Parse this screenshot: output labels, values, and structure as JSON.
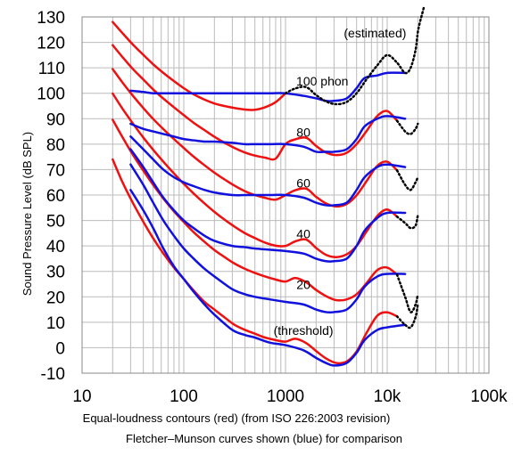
{
  "chart_data": {
    "type": "line",
    "ylabel": "Sound Pressure Level (dB SPL)",
    "caption_lines": [
      "Equal-loudness contours (red) (from ISO 226:2003 revision)",
      "Fletcher–Munson curves shown (blue) for comparison"
    ],
    "x_scale": "log",
    "xlim": [
      10,
      100000
    ],
    "ylim": [
      -10,
      130
    ],
    "x_ticks": [
      {
        "value": 10,
        "label": "10"
      },
      {
        "value": 100,
        "label": "100"
      },
      {
        "value": 1000,
        "label": "1000"
      },
      {
        "value": 10000,
        "label": "10k"
      },
      {
        "value": 100000,
        "label": "100k"
      }
    ],
    "y_ticks": [
      {
        "value": 130,
        "label": "130"
      },
      {
        "value": 120,
        "label": "120"
      },
      {
        "value": 110,
        "label": "110"
      },
      {
        "value": 100,
        "label": "100"
      },
      {
        "value": 90,
        "label": "90"
      },
      {
        "value": 80,
        "label": "80"
      },
      {
        "value": 70,
        "label": "70"
      },
      {
        "value": 60,
        "label": "60"
      },
      {
        "value": 50,
        "label": "50"
      },
      {
        "value": 40,
        "label": "40"
      },
      {
        "value": 30,
        "label": "30"
      },
      {
        "value": 20,
        "label": "20"
      },
      {
        "value": 10,
        "label": "10"
      },
      {
        "value": 0,
        "label": "0"
      },
      {
        "value": -10,
        "label": "-10"
      }
    ],
    "grid": true,
    "colors": {
      "iso": "#ee1111",
      "fletcher": "#1111dd",
      "estimated": "#000000",
      "grid": "#bbbbbb"
    },
    "annotations": [
      {
        "text": "(estimated)",
        "x": 7600,
        "y": 122
      },
      {
        "text": "100 phon",
        "x": 2300,
        "y": 103
      },
      {
        "text": "80",
        "x": 1500,
        "y": 83
      },
      {
        "text": "60",
        "x": 1500,
        "y": 63
      },
      {
        "text": "40",
        "x": 1500,
        "y": 43
      },
      {
        "text": "20",
        "x": 1500,
        "y": 23
      },
      {
        "text": "(threshold)",
        "x": 1500,
        "y": 5
      }
    ],
    "series": [
      {
        "kind": "iso",
        "x": [
          20,
          25,
          31.5,
          40,
          50,
          63,
          80,
          100,
          125,
          160,
          200,
          250,
          315,
          400,
          500,
          630,
          800,
          1000,
          1250,
          1600,
          2000,
          2500,
          3150,
          4000,
          5000,
          6300,
          8000,
          10000,
          12500
        ],
        "values": [
          74,
          65,
          57,
          49.5,
          43,
          37,
          31.5,
          27,
          22.5,
          18,
          15,
          12,
          9,
          7,
          5.5,
          4,
          3,
          2.4,
          3.5,
          1.8,
          -1.3,
          -4.2,
          -6,
          -5.4,
          -1.5,
          6,
          12.6,
          13.9,
          12.3
        ]
      },
      {
        "kind": "iso",
        "x": [
          20,
          25,
          31.5,
          40,
          50,
          63,
          80,
          100,
          125,
          160,
          200,
          250,
          315,
          400,
          500,
          630,
          800,
          1000,
          1250,
          1600,
          2000,
          2500,
          3150,
          4000,
          5000,
          6300,
          8000,
          10000,
          12500
        ],
        "values": [
          89.6,
          82.7,
          75.9,
          69.6,
          64,
          58.6,
          53.6,
          49.4,
          45.4,
          41.6,
          38.4,
          35.7,
          33.1,
          31,
          29.4,
          28,
          26.8,
          26,
          27.4,
          25.7,
          22.7,
          20.3,
          18.7,
          19,
          21,
          25.5,
          30.5,
          31.5,
          28.7
        ]
      },
      {
        "kind": "iso",
        "x": [
          20,
          25,
          31.5,
          40,
          50,
          63,
          80,
          100,
          125,
          160,
          200,
          250,
          315,
          400,
          500,
          630,
          800,
          1000,
          1250,
          1600,
          2000,
          2500,
          3150,
          4000,
          5000,
          6300,
          8000,
          10000,
          12500
        ],
        "values": [
          99.9,
          93.9,
          88.2,
          82.6,
          77.8,
          73.1,
          68.5,
          64.4,
          60.6,
          56.7,
          53.4,
          50.4,
          47.6,
          45,
          43.1,
          41.3,
          40.1,
          40,
          41.8,
          42.5,
          39.2,
          36.5,
          35.6,
          36.7,
          40,
          45.8,
          51.8,
          54.3,
          51.5
        ]
      },
      {
        "kind": "iso",
        "x": [
          20,
          25,
          31.5,
          40,
          50,
          63,
          80,
          100,
          125,
          160,
          200,
          250,
          315,
          400,
          500,
          630,
          800,
          1000,
          1250,
          1600,
          2000,
          2500,
          3150,
          4000,
          5000,
          6300,
          8000,
          10000,
          12500
        ],
        "values": [
          109.5,
          104.2,
          99.1,
          94.2,
          89.9,
          85.9,
          82,
          78.5,
          75.1,
          71.7,
          68.8,
          66.2,
          63.7,
          61.5,
          60,
          58.9,
          58.2,
          60,
          61.9,
          62.5,
          59.3,
          56.7,
          55.5,
          56.5,
          59.9,
          65.6,
          71.5,
          73.1,
          69.7
        ]
      },
      {
        "kind": "iso",
        "x": [
          20,
          25,
          31.5,
          40,
          50,
          63,
          80,
          100,
          125,
          160,
          200,
          250,
          315,
          400,
          500,
          630,
          800,
          1000,
          1250,
          1600,
          2000,
          2500,
          3150,
          4000,
          5000,
          6300,
          8000,
          10000,
          12500
        ],
        "values": [
          118.9,
          114.2,
          109.6,
          105.4,
          101.5,
          97.9,
          94.5,
          91.4,
          88.4,
          85.5,
          82.9,
          80.6,
          78.5,
          76.7,
          75.5,
          74.7,
          74.3,
          80,
          81.9,
          82.5,
          79.3,
          76.7,
          75.7,
          76.6,
          80,
          85.3,
          91.1,
          93,
          89.2
        ]
      },
      {
        "kind": "iso",
        "x": [
          20,
          25,
          31.5,
          40,
          50,
          63,
          80,
          100,
          125,
          160,
          200,
          250,
          315,
          400,
          500,
          630,
          800,
          1000
        ],
        "values": [
          128,
          123.6,
          119.2,
          115.1,
          111.4,
          108,
          104.8,
          102,
          99.6,
          97.5,
          96,
          95,
          94.2,
          93.6,
          93.5,
          94.5,
          96.5,
          100
        ]
      },
      {
        "kind": "fletcher",
        "x": [
          30,
          40,
          50,
          63,
          80,
          100,
          125,
          160,
          200,
          300,
          400,
          500,
          700,
          1000,
          1500,
          2000,
          2500,
          3000,
          4000,
          5000,
          6000,
          8000,
          10000,
          15000
        ],
        "values": [
          62,
          54,
          47,
          39,
          32,
          27,
          22,
          17,
          13,
          7,
          5,
          4,
          2,
          1,
          -1,
          -4,
          -6,
          -7,
          -6,
          -2,
          3,
          7,
          8,
          9
        ]
      },
      {
        "kind": "fletcher",
        "x": [
          30,
          40,
          50,
          63,
          80,
          100,
          125,
          160,
          200,
          300,
          400,
          500,
          700,
          1000,
          1500,
          2000,
          2500,
          3000,
          4000,
          5000,
          6000,
          8000,
          10000,
          15000
        ],
        "values": [
          72,
          64,
          57,
          50,
          44,
          39,
          35,
          31,
          28,
          23,
          21,
          20,
          19,
          18,
          17,
          15,
          14,
          14,
          15,
          19,
          24,
          28,
          29,
          29
        ]
      },
      {
        "kind": "fletcher",
        "x": [
          30,
          40,
          50,
          63,
          80,
          100,
          125,
          160,
          200,
          300,
          400,
          500,
          700,
          1000,
          1500,
          2000,
          2500,
          3000,
          4000,
          5000,
          6000,
          8000,
          10000,
          15000
        ],
        "values": [
          78,
          71,
          65,
          59,
          54,
          50,
          47,
          44,
          42,
          40,
          39.5,
          39,
          38.5,
          38,
          37,
          35,
          34,
          34,
          35,
          40,
          46,
          51,
          53,
          53
        ]
      },
      {
        "kind": "fletcher",
        "x": [
          30,
          40,
          50,
          63,
          80,
          100,
          125,
          160,
          200,
          300,
          400,
          500,
          700,
          1000,
          1500,
          2000,
          2500,
          3000,
          4000,
          5000,
          6000,
          8000,
          10000,
          15000
        ],
        "values": [
          83,
          78,
          74,
          70,
          67,
          65,
          63.5,
          62,
          61,
          60,
          60,
          60,
          60,
          60,
          59,
          57,
          56,
          56,
          57,
          62,
          67,
          71,
          72,
          71
        ]
      },
      {
        "kind": "fletcher",
        "x": [
          30,
          40,
          50,
          63,
          80,
          100,
          125,
          160,
          200,
          300,
          400,
          500,
          700,
          1000,
          1500,
          2000,
          2500,
          3000,
          4000,
          5000,
          6000,
          8000,
          10000,
          15000
        ],
        "values": [
          88,
          86,
          85,
          84,
          83,
          82,
          81.5,
          81,
          81,
          80.5,
          80,
          80,
          80,
          80,
          79,
          77,
          77,
          77,
          78,
          82,
          87,
          90,
          91,
          90
        ]
      },
      {
        "kind": "fletcher",
        "x": [
          30,
          40,
          50,
          63,
          80,
          100,
          125,
          160,
          200,
          300,
          400,
          500,
          700,
          1000,
          1500,
          2000,
          2500,
          3000,
          4000,
          5000,
          6000,
          8000,
          10000,
          15000
        ],
        "values": [
          101,
          100.5,
          100,
          100,
          100,
          100,
          100,
          100,
          100,
          100,
          100,
          100,
          100,
          100,
          99,
          98,
          97,
          97,
          98,
          102,
          106,
          107,
          108,
          108
        ]
      },
      {
        "kind": "estimated",
        "x": [
          12500,
          15000,
          17000,
          19000,
          20000
        ],
        "values": [
          12.3,
          9,
          8,
          12,
          17
        ]
      },
      {
        "kind": "estimated",
        "x": [
          12500,
          15000,
          17000,
          19000,
          20000
        ],
        "values": [
          28.7,
          20,
          14,
          17,
          21
        ]
      },
      {
        "kind": "estimated",
        "x": [
          12500,
          15000,
          17000,
          19000,
          20000
        ],
        "values": [
          51.5,
          49,
          47,
          48,
          52
        ]
      },
      {
        "kind": "estimated",
        "x": [
          12500,
          15000,
          17000,
          19000,
          20000
        ],
        "values": [
          69.7,
          64,
          62,
          65,
          67
        ]
      },
      {
        "kind": "estimated",
        "x": [
          12500,
          15000,
          17000,
          19000,
          20000
        ],
        "values": [
          89.2,
          85,
          84,
          86,
          88
        ]
      },
      {
        "kind": "estimated",
        "x": [
          1000,
          1250,
          1600,
          2000,
          2500,
          3150,
          4000,
          5000,
          6300,
          8000,
          10000,
          12500,
          15000,
          17000,
          19000,
          20000,
          21000,
          22000,
          23000
        ],
        "values": [
          100,
          101.9,
          102.4,
          99.3,
          96.8,
          95.7,
          96.6,
          100,
          105.6,
          111,
          115,
          112,
          108,
          110,
          117,
          124,
          128,
          131,
          134
        ]
      }
    ]
  }
}
